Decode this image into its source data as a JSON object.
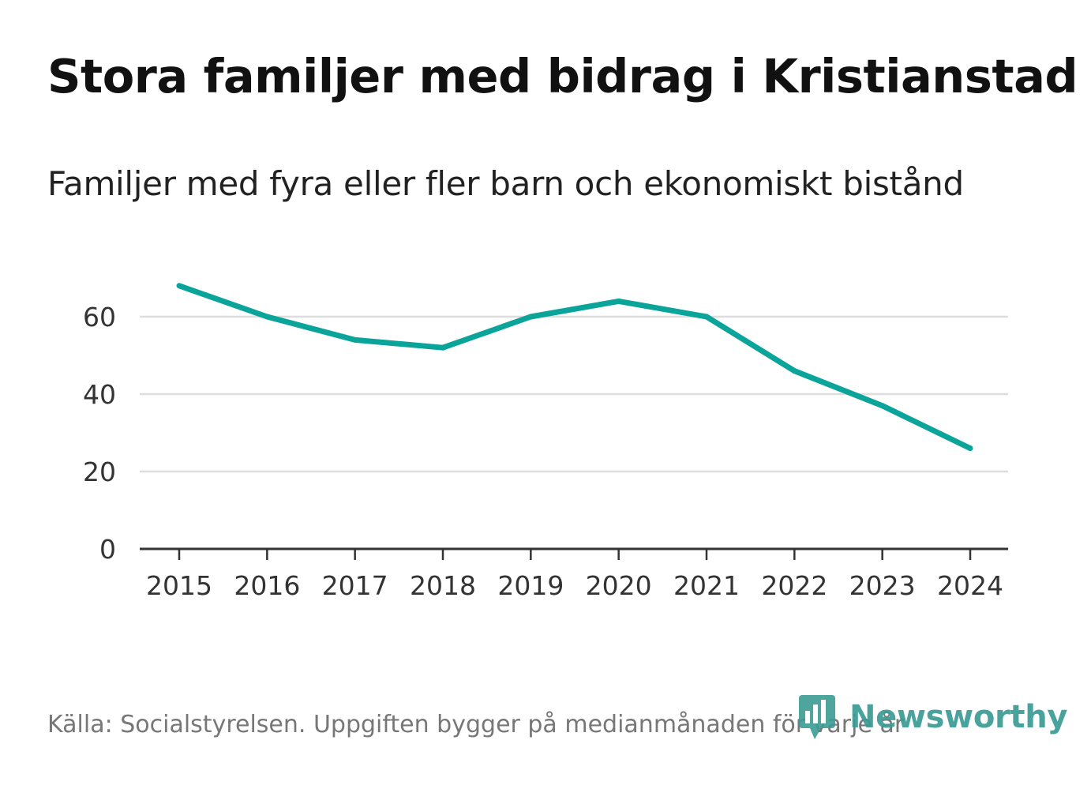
{
  "chart_data": {
    "type": "line",
    "title": "Stora familjer med bidrag i Kristianstad",
    "subtitle": "Familjer med fyra eller fler barn och ekonomiskt bistånd",
    "categories": [
      "2015",
      "2016",
      "2017",
      "2018",
      "2019",
      "2020",
      "2021",
      "2022",
      "2023",
      "2024"
    ],
    "series": [
      {
        "name": "Familjer",
        "values": [
          68,
          60,
          54,
          52,
          60,
          64,
          60,
          46,
          37,
          26
        ]
      }
    ],
    "yticks": [
      "0",
      "20",
      "40",
      "60"
    ],
    "ylim": [
      0,
      70
    ],
    "xlabel": "",
    "ylabel": "",
    "grid": true,
    "colors": {
      "line": "#0aa49a",
      "grid": "#dddddd",
      "axis": "#333333"
    }
  },
  "footer": {
    "source": "Källa: Socialstyrelsen. Uppgiften bygger på medianmånaden för varje år",
    "brand": "Newsworthy"
  }
}
